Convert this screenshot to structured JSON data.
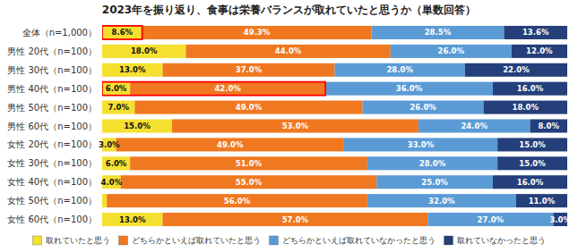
{
  "chart_data": {
    "type": "bar",
    "orientation": "horizontal",
    "stacked": true,
    "title": "2023年を振り返り、食事は栄養バランスが取れていたと思うか（単数回答）",
    "categories": [
      "全体（n=1,000）",
      "男性 20代（n=100）",
      "男性 30代（n=100）",
      "男性 40代（n=100）",
      "男性 50代（n=100）",
      "男性 60代（n=100）",
      "女性 20代（n=100）",
      "女性 30代（n=100）",
      "女性 40代（n=100）",
      "女性 50代（n=100）",
      "女性 60代（n=100）"
    ],
    "series": [
      {
        "name": "取れていたと思う",
        "color": "#f5e030",
        "values": [
          8.6,
          18.0,
          13.0,
          6.0,
          7.0,
          15.0,
          3.0,
          6.0,
          4.0,
          1.0,
          13.0
        ],
        "value_labels": [
          "8.6%",
          "18.0%",
          "13.0%",
          "6.0%",
          "7.0%",
          "15.0%",
          "3.0%",
          "6.0%",
          "4.0%",
          null,
          "13.0%"
        ]
      },
      {
        "name": "どちらかといえば取れていたと思う",
        "color": "#f07820",
        "values": [
          49.3,
          44.0,
          37.0,
          42.0,
          49.0,
          53.0,
          49.0,
          51.0,
          55.0,
          56.0,
          57.0
        ],
        "value_labels": [
          "49.3%",
          "44.0%",
          "37.0%",
          "42.0%",
          "49.0%",
          "53.0%",
          "49.0%",
          "51.0%",
          "55.0%",
          "56.0%",
          "57.0%"
        ]
      },
      {
        "name": "どちらかといえば取れていなかったと思う",
        "color": "#5b9bd5",
        "values": [
          28.5,
          26.0,
          28.0,
          36.0,
          26.0,
          24.0,
          33.0,
          28.0,
          25.0,
          32.0,
          27.0
        ],
        "value_labels": [
          "28.5%",
          "26.0%",
          "28.0%",
          "36.0%",
          "26.0%",
          "24.0%",
          "33.0%",
          "28.0%",
          "25.0%",
          "32.0%",
          "27.0%"
        ]
      },
      {
        "name": "取れていなかったと思う",
        "color": "#243f7a",
        "values": [
          13.6,
          12.0,
          22.0,
          16.0,
          18.0,
          8.0,
          15.0,
          15.0,
          16.0,
          11.0,
          3.0
        ],
        "value_labels": [
          "13.6%",
          "12.0%",
          "22.0%",
          "16.0%",
          "18.0%",
          "8.0%",
          "15.0%",
          "15.0%",
          "16.0%",
          "11.0%",
          "3.0%"
        ]
      }
    ],
    "xlim": [
      0,
      100
    ],
    "data_labels": true,
    "tick_labels": "y",
    "legend": "bottom",
    "highlights": [
      {
        "category": "全体（n=1,000）",
        "values": [
          0,
          8.6
        ],
        "color": "red"
      },
      {
        "category": "男性 40代（n=100）",
        "values": [
          0,
          48.0
        ],
        "color": "red"
      }
    ]
  }
}
